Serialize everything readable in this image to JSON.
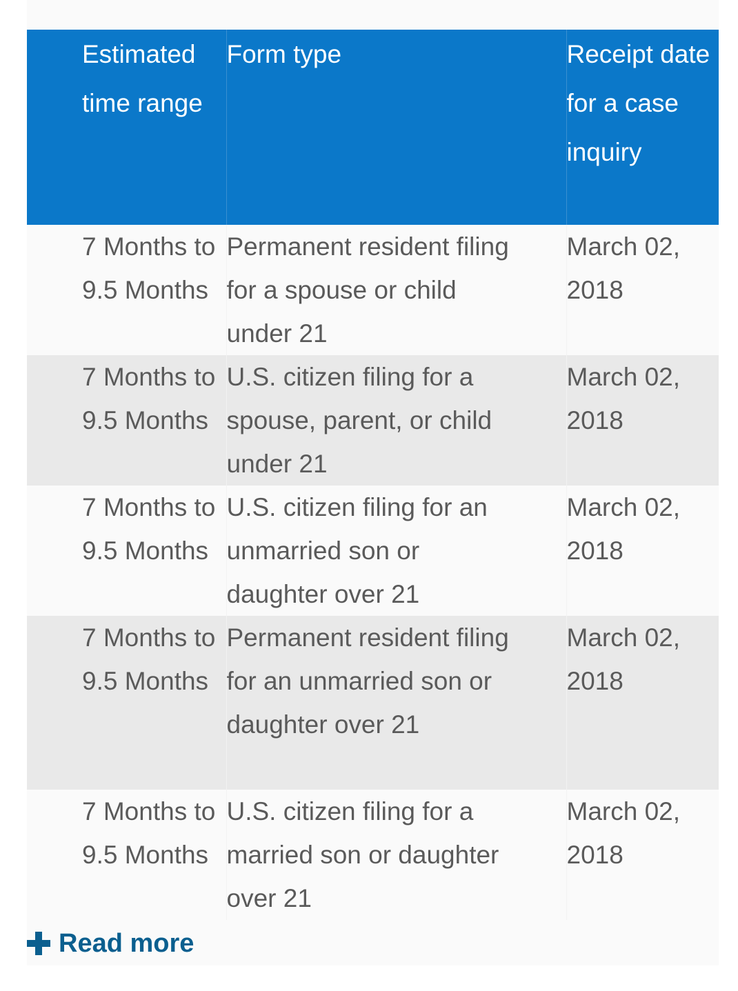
{
  "table": {
    "headers": {
      "time_range": "Estimated time range",
      "form_type": "Form type",
      "receipt_date": "Receipt date for a case inquiry"
    },
    "rows": [
      {
        "time_range": "7 Months to 9.5 Months",
        "form_type": "Permanent resident filing for a spouse or child under 21",
        "receipt_date": "March 02, 2018"
      },
      {
        "time_range": "7 Months to 9.5 Months",
        "form_type": "U.S. citizen filing for a spouse, parent, or child under 21",
        "receipt_date": "March 02, 2018"
      },
      {
        "time_range": "7 Months to 9.5 Months",
        "form_type": "U.S. citizen filing for an unmarried son or daughter over 21",
        "receipt_date": "March 02, 2018"
      },
      {
        "time_range": "7 Months to 9.5 Months",
        "form_type": "Permanent resident filing for an unmarried son or daughter over 21",
        "receipt_date": "March 02, 2018"
      },
      {
        "time_range": "7 Months to 9.5 Months",
        "form_type": "U.S. citizen filing for a married son or daughter over 21",
        "receipt_date": "March 02, 2018"
      }
    ]
  },
  "read_more": {
    "label": "Read more",
    "icon": "plus-icon"
  },
  "colors": {
    "header_bg": "#0b78c9",
    "link": "#0b5f8f",
    "text": "#5a5a5a"
  }
}
